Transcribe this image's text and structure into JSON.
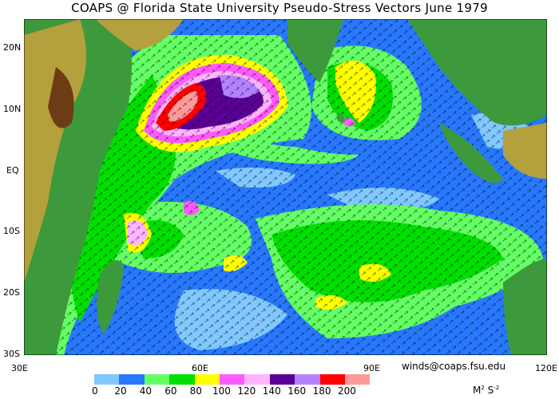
{
  "title": "COAPS @ Florida State University Pseudo-Stress Vectors  June 1979",
  "credit": "winds@coaps.fsu.edu",
  "lat_labels": [
    "20N",
    "10N",
    "EQ",
    "10S",
    "20S",
    "30S"
  ],
  "lon_labels": [
    "30E",
    "60E",
    "90E",
    "120E"
  ],
  "colorbar": {
    "colors": [
      "#80c8ff",
      "#2878ff",
      "#64ff64",
      "#00e000",
      "#ffff00",
      "#ff5aff",
      "#ffb4ff",
      "#5a0096",
      "#b482ff",
      "#ff0000",
      "#ff9a9a"
    ],
    "labels": [
      "0",
      "20",
      "40",
      "60",
      "80",
      "100",
      "120",
      "140",
      "160",
      "180",
      "200"
    ],
    "units_base": "M",
    "units_exp1": "2",
    "units_mid": " S",
    "units_exp2": "-2"
  },
  "colors": {
    "land_low": "#3c9a3c",
    "land_mid": "#b4a03c",
    "land_high": "#6e3c14",
    "coast": "#c8c8c8",
    "arrow": "#000000"
  }
}
